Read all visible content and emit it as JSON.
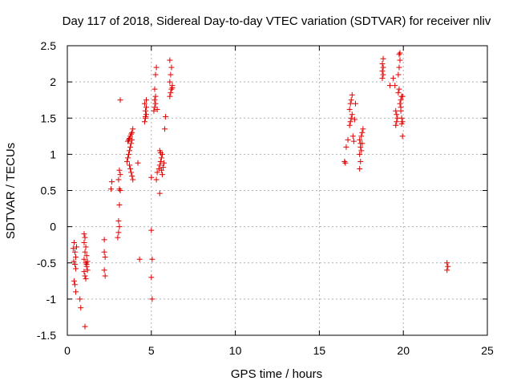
{
  "chart_data": {
    "type": "scatter",
    "title": "Day 117 of 2018, Sidereal Day-to-day VTEC variation (SDTVAR) for receiver nliv",
    "xlabel": "GPS time / hours",
    "ylabel": "SDTVAR / TECUs",
    "xlim": [
      0,
      25
    ],
    "ylim": [
      -1.5,
      2.5
    ],
    "xticks": [
      0,
      5,
      10,
      15,
      20,
      25
    ],
    "xtick_labels": [
      "0",
      "5",
      "10",
      "15",
      "20",
      "25"
    ],
    "yticks": [
      -1.5,
      -1,
      -0.5,
      0,
      0.5,
      1,
      1.5,
      2,
      2.5
    ],
    "ytick_labels": [
      "-1.5",
      "-1",
      "-0.5",
      "0",
      "0.5",
      "1",
      "1.5",
      "2",
      "2.5"
    ],
    "grid": true,
    "marker": "+",
    "color": "#e00000",
    "series": [
      {
        "name": "SDTVAR",
        "points": [
          [
            0.35,
            -0.3
          ],
          [
            0.4,
            -0.22
          ],
          [
            0.45,
            -0.35
          ],
          [
            0.5,
            -0.42
          ],
          [
            0.38,
            -0.48
          ],
          [
            0.45,
            -0.52
          ],
          [
            0.5,
            -0.58
          ],
          [
            0.4,
            -0.75
          ],
          [
            0.45,
            -0.8
          ],
          [
            0.5,
            -0.9
          ],
          [
            0.55,
            -0.28
          ],
          [
            0.75,
            -1.0
          ],
          [
            0.8,
            -1.12
          ],
          [
            1.0,
            -0.1
          ],
          [
            1.05,
            -0.15
          ],
          [
            1.0,
            -0.22
          ],
          [
            1.1,
            -0.28
          ],
          [
            1.05,
            -0.35
          ],
          [
            1.15,
            -0.4
          ],
          [
            1.0,
            -0.45
          ],
          [
            1.2,
            -0.48
          ],
          [
            1.1,
            -0.5
          ],
          [
            1.15,
            -0.55
          ],
          [
            1.2,
            -0.6
          ],
          [
            1.0,
            -0.62
          ],
          [
            1.05,
            -0.68
          ],
          [
            1.1,
            -0.72
          ],
          [
            1.15,
            -0.52
          ],
          [
            1.05,
            -1.38
          ],
          [
            2.2,
            -0.18
          ],
          [
            2.2,
            -0.35
          ],
          [
            2.25,
            -0.42
          ],
          [
            2.2,
            -0.6
          ],
          [
            2.25,
            -0.68
          ],
          [
            2.6,
            0.52
          ],
          [
            2.65,
            0.62
          ],
          [
            3.0,
            -0.15
          ],
          [
            3.05,
            -0.08
          ],
          [
            3.1,
            0.0
          ],
          [
            3.05,
            0.08
          ],
          [
            3.1,
            0.3
          ],
          [
            3.15,
            0.5
          ],
          [
            3.1,
            0.52
          ],
          [
            3.05,
            0.65
          ],
          [
            3.15,
            0.72
          ],
          [
            3.1,
            0.78
          ],
          [
            3.15,
            1.75
          ],
          [
            3.55,
            0.9
          ],
          [
            3.6,
            0.95
          ],
          [
            3.65,
            1.0
          ],
          [
            3.7,
            1.05
          ],
          [
            3.75,
            1.1
          ],
          [
            3.8,
            1.15
          ],
          [
            3.65,
            1.2
          ],
          [
            3.7,
            1.22
          ],
          [
            3.75,
            1.25
          ],
          [
            3.8,
            1.28
          ],
          [
            3.85,
            1.3
          ],
          [
            3.9,
            1.35
          ],
          [
            3.7,
            0.85
          ],
          [
            3.75,
            0.8
          ],
          [
            3.8,
            0.75
          ],
          [
            3.85,
            0.7
          ],
          [
            3.9,
            0.65
          ],
          [
            3.6,
            1.18
          ],
          [
            3.85,
            1.2
          ],
          [
            4.2,
            0.88
          ],
          [
            4.3,
            -0.45
          ],
          [
            4.6,
            1.45
          ],
          [
            4.65,
            1.5
          ],
          [
            4.7,
            1.55
          ],
          [
            4.65,
            1.6
          ],
          [
            4.7,
            1.65
          ],
          [
            4.6,
            1.7
          ],
          [
            4.7,
            1.75
          ],
          [
            4.65,
            1.52
          ],
          [
            5.0,
            -0.05
          ],
          [
            5.05,
            -0.45
          ],
          [
            5.0,
            -0.7
          ],
          [
            5.05,
            -1.0
          ],
          [
            5.0,
            0.68
          ],
          [
            5.15,
            1.6
          ],
          [
            5.2,
            1.65
          ],
          [
            5.25,
            1.7
          ],
          [
            5.2,
            1.75
          ],
          [
            5.25,
            1.8
          ],
          [
            5.2,
            1.9
          ],
          [
            5.25,
            2.1
          ],
          [
            5.3,
            2.2
          ],
          [
            5.35,
            1.62
          ],
          [
            5.3,
            0.65
          ],
          [
            5.35,
            0.75
          ],
          [
            5.45,
            0.8
          ],
          [
            5.5,
            0.85
          ],
          [
            5.55,
            0.9
          ],
          [
            5.6,
            0.95
          ],
          [
            5.65,
            1.0
          ],
          [
            5.5,
            1.05
          ],
          [
            5.55,
            1.02
          ],
          [
            5.6,
            0.78
          ],
          [
            5.65,
            0.72
          ],
          [
            5.7,
            0.82
          ],
          [
            5.75,
            0.88
          ],
          [
            5.5,
            0.46
          ],
          [
            5.8,
            1.35
          ],
          [
            5.85,
            1.52
          ],
          [
            6.1,
            1.8
          ],
          [
            6.15,
            1.85
          ],
          [
            6.2,
            1.9
          ],
          [
            6.25,
            1.95
          ],
          [
            6.1,
            2.0
          ],
          [
            6.15,
            2.1
          ],
          [
            6.2,
            2.2
          ],
          [
            6.1,
            2.3
          ],
          [
            6.25,
            1.92
          ],
          [
            16.5,
            0.9
          ],
          [
            16.55,
            0.88
          ],
          [
            16.6,
            1.1
          ],
          [
            16.7,
            1.2
          ],
          [
            16.8,
            1.4
          ],
          [
            16.85,
            1.45
          ],
          [
            16.9,
            1.5
          ],
          [
            16.95,
            1.55
          ],
          [
            16.8,
            1.62
          ],
          [
            16.85,
            1.7
          ],
          [
            16.9,
            1.75
          ],
          [
            16.95,
            1.82
          ],
          [
            17.0,
            1.25
          ],
          [
            17.05,
            1.18
          ],
          [
            17.1,
            1.48
          ],
          [
            17.15,
            1.7
          ],
          [
            17.4,
            0.8
          ],
          [
            17.45,
            0.9
          ],
          [
            17.4,
            1.0
          ],
          [
            17.5,
            1.05
          ],
          [
            17.45,
            1.1
          ],
          [
            17.55,
            1.15
          ],
          [
            17.4,
            1.2
          ],
          [
            17.5,
            1.25
          ],
          [
            17.55,
            1.3
          ],
          [
            17.6,
            1.35
          ],
          [
            17.45,
            1.15
          ],
          [
            18.75,
            2.05
          ],
          [
            18.8,
            2.1
          ],
          [
            18.75,
            2.15
          ],
          [
            18.8,
            2.2
          ],
          [
            18.75,
            2.25
          ],
          [
            18.8,
            2.32
          ],
          [
            19.2,
            1.95
          ],
          [
            19.4,
            2.05
          ],
          [
            19.5,
            1.95
          ],
          [
            19.55,
            1.6
          ],
          [
            19.6,
            1.55
          ],
          [
            19.65,
            1.5
          ],
          [
            19.6,
            1.45
          ],
          [
            19.55,
            1.4
          ],
          [
            19.7,
            1.85
          ],
          [
            19.75,
            1.9
          ],
          [
            19.7,
            2.1
          ],
          [
            19.75,
            2.2
          ],
          [
            19.8,
            2.3
          ],
          [
            19.75,
            2.38
          ],
          [
            19.8,
            2.4
          ],
          [
            19.8,
            1.7
          ],
          [
            19.85,
            1.75
          ],
          [
            19.9,
            1.8
          ],
          [
            19.85,
            1.6
          ],
          [
            19.9,
            1.5
          ],
          [
            19.95,
            1.45
          ],
          [
            19.9,
            1.42
          ],
          [
            19.95,
            1.25
          ],
          [
            19.85,
            1.65
          ],
          [
            19.95,
            1.8
          ],
          [
            22.6,
            -0.5
          ],
          [
            22.65,
            -0.55
          ],
          [
            22.6,
            -0.6
          ]
        ]
      }
    ]
  }
}
